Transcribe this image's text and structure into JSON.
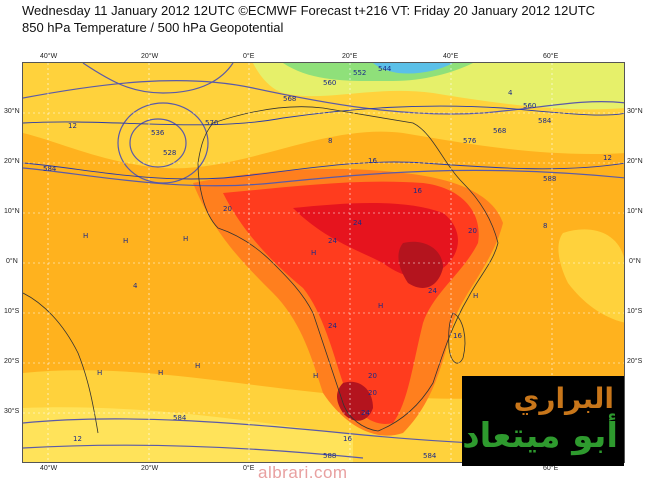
{
  "header": {
    "line1": "Wednesday 11 January 2012 12UTC ©ECMWF Forecast t+216 VT: Friday 20 January 2012 12UTC",
    "line2": "850 hPa Temperature / 500 hPa Geopotential"
  },
  "axes": {
    "lon_labels": [
      "40°W",
      "20°W",
      "0°E",
      "20°E",
      "40°E",
      "60°E"
    ],
    "lat_labels": [
      "30°N",
      "20°N",
      "10°N",
      "0°N",
      "10°S",
      "20°S",
      "30°S"
    ]
  },
  "contour_labels": {
    "geopotential": [
      "584",
      "576",
      "568",
      "560",
      "552",
      "544",
      "536",
      "528",
      "560",
      "568",
      "576",
      "584",
      "588",
      "584",
      "584",
      "588"
    ],
    "temperature": [
      "12",
      "8",
      "4",
      "16",
      "20",
      "24",
      "24",
      "24",
      "20",
      "16",
      "12",
      "8",
      "4",
      "16",
      "20",
      "24",
      "24",
      "20",
      "16",
      "12"
    ],
    "highs": [
      "H",
      "H",
      "H",
      "H",
      "H",
      "H",
      "H",
      "H",
      "H",
      "H"
    ]
  },
  "legend_colors": {
    "cold": "#5bc0e8",
    "cool": "#8fe07a",
    "mild": "#e6f06a",
    "warm": "#ffd23c",
    "warmer": "#ffb21e",
    "hot": "#ff7f1e",
    "very_hot": "#ff3c1e",
    "extreme": "#e6141e",
    "max": "#b4141e"
  },
  "logo": {
    "line1": "البراري",
    "line2": "أبو ميتعاد"
  },
  "watermark": "albrari.com"
}
